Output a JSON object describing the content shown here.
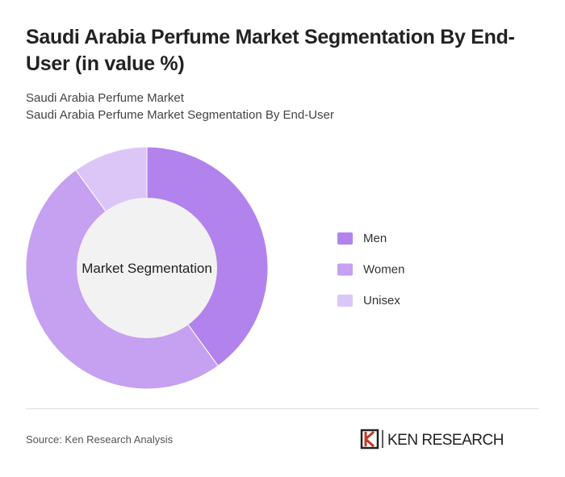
{
  "chart_data": {
    "type": "donut",
    "title": "Saudi Arabia Perfume Market Segmentation By End-User (in value %)",
    "subtitles": [
      "Saudi Arabia Perfume Market",
      "Saudi Arabia Perfume Market Segmentation By End-User"
    ],
    "center_label": "Market Segmentation",
    "categories": [
      "Men",
      "Women",
      "Unisex"
    ],
    "values": [
      40,
      50,
      10
    ],
    "colors": [
      "#b283ec",
      "#c6a0f1",
      "#dcc6f8"
    ],
    "source": "Source: Ken Research Analysis",
    "brand": "KEN RESEARCH"
  }
}
